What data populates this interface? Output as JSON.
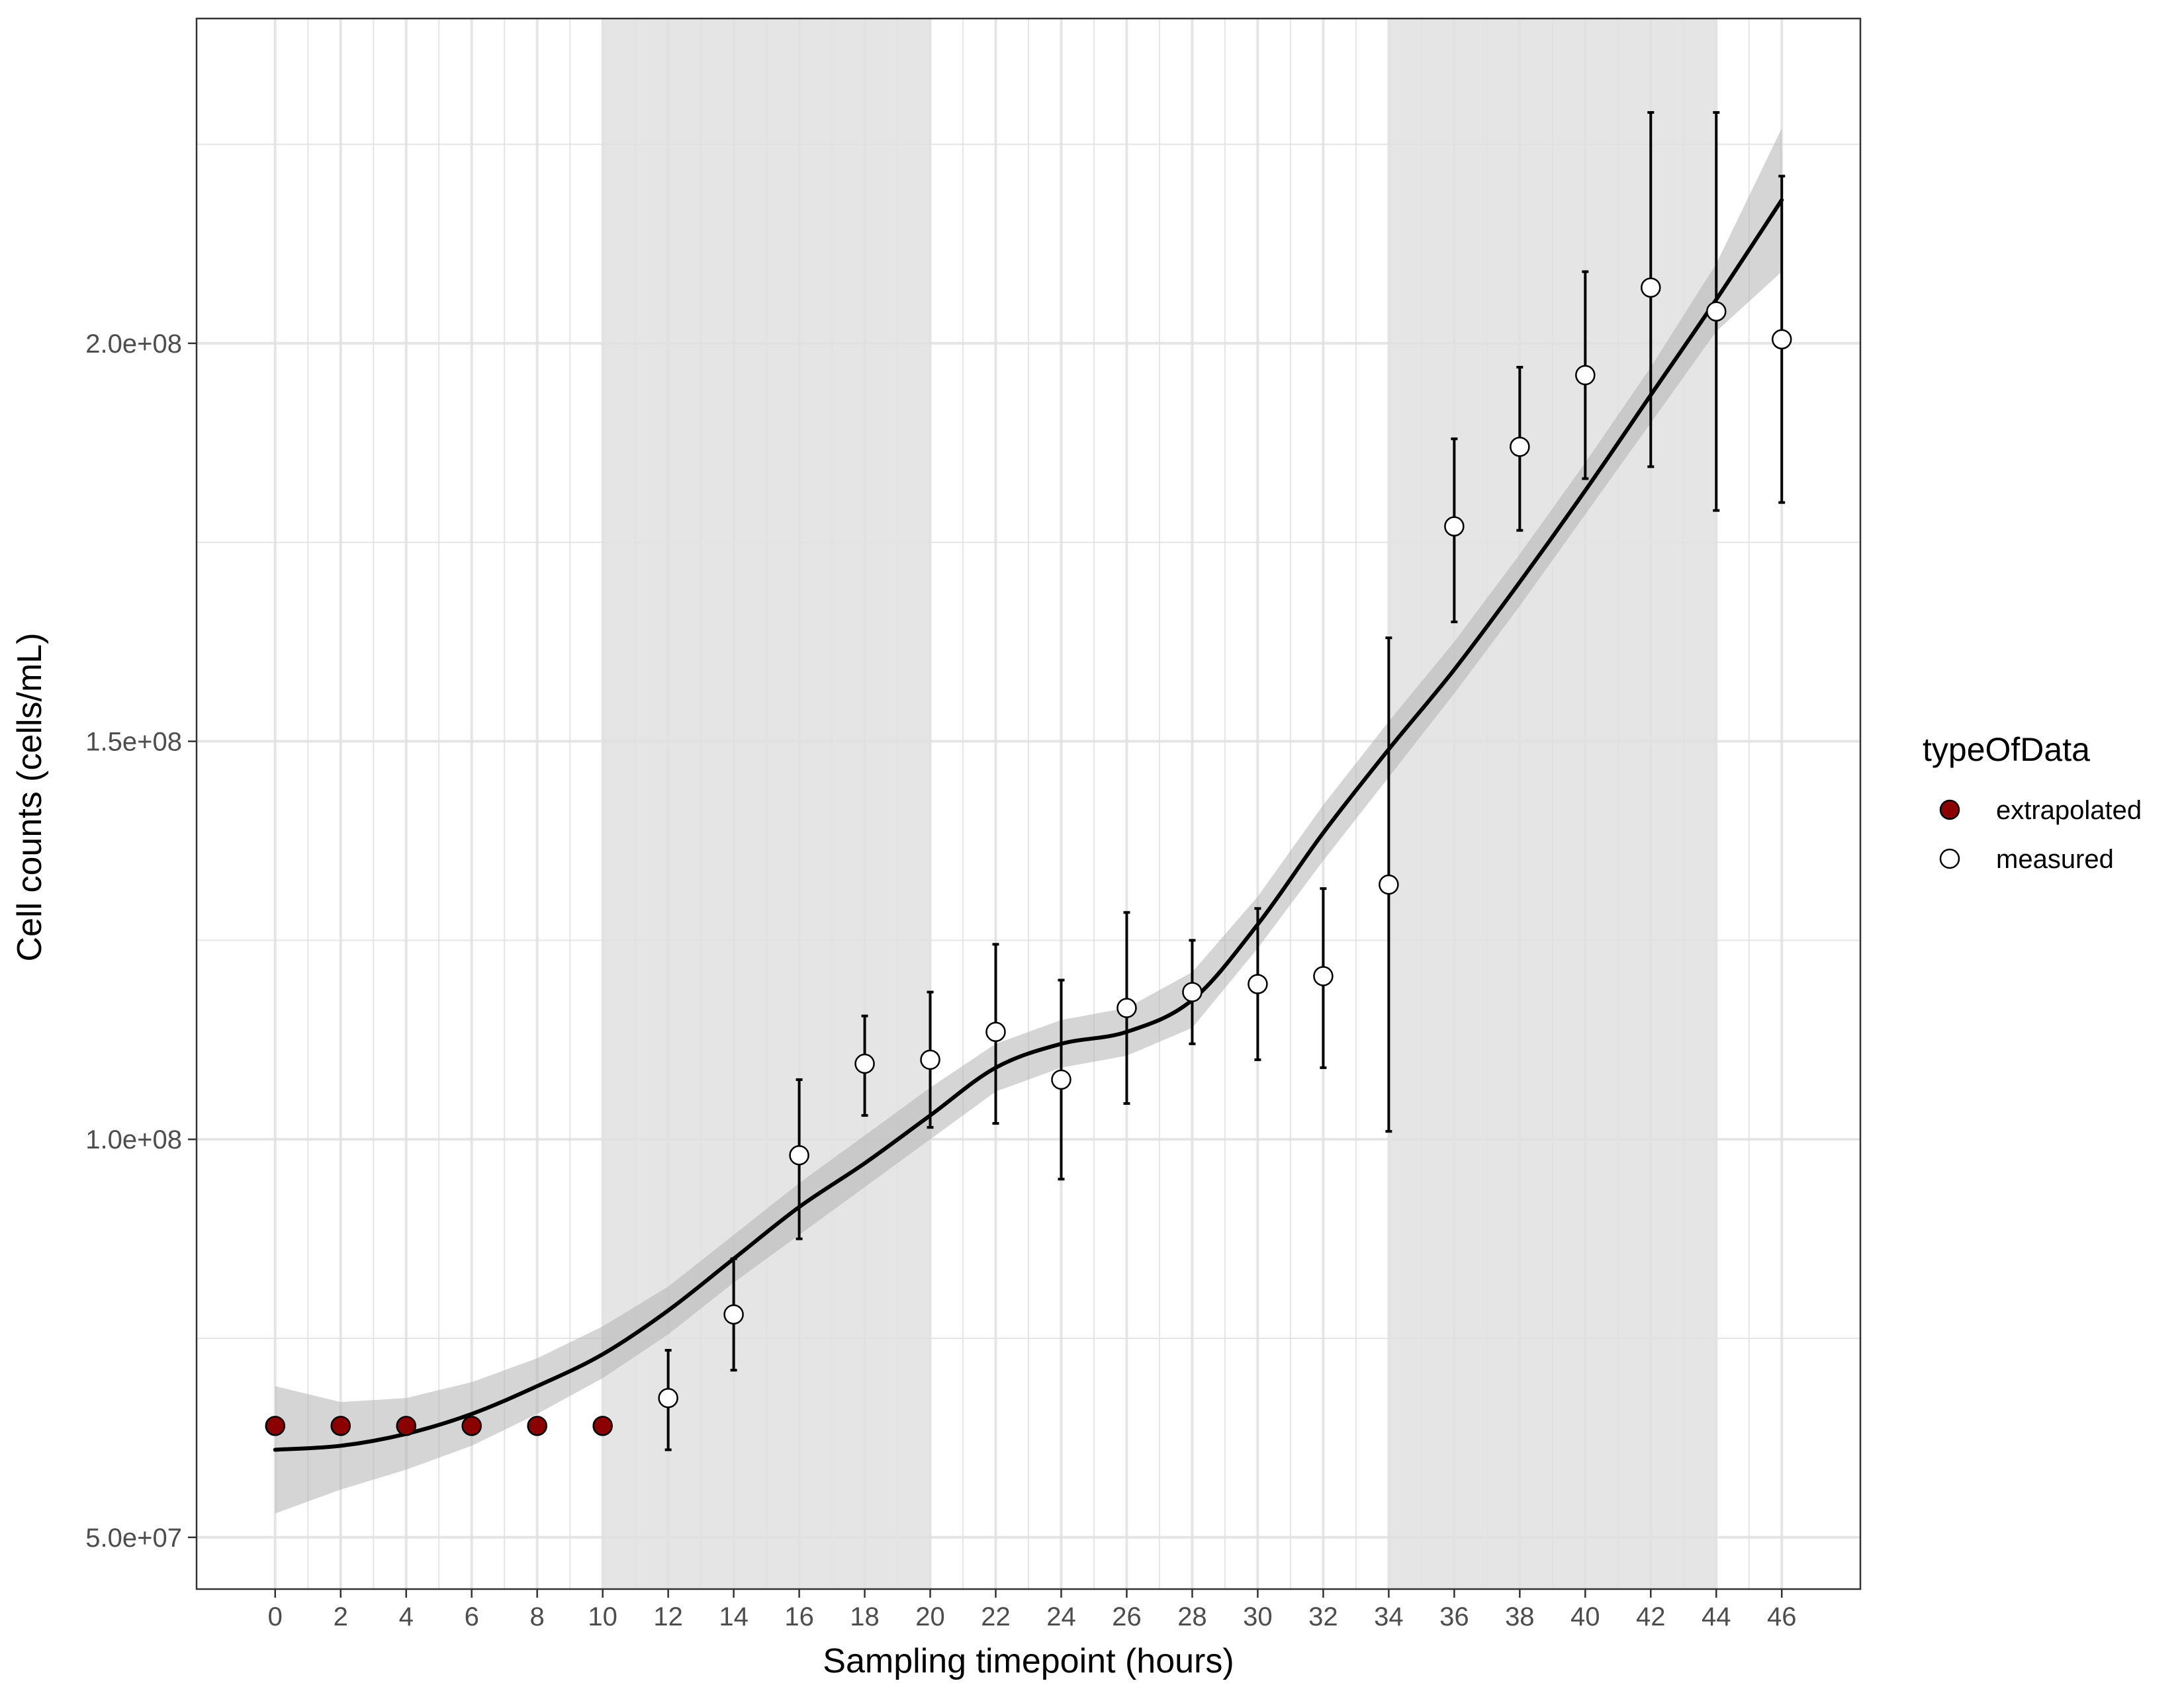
{
  "chart_data": {
    "type": "scatter",
    "title": "",
    "xlabel": "Sampling timepoint (hours)",
    "ylabel": "Cell counts (cells/mL)",
    "xlim": [
      -2.4,
      48.4
    ],
    "ylim": [
      43500000,
      240800000
    ],
    "x_ticks": [
      0,
      2,
      4,
      6,
      8,
      10,
      12,
      14,
      16,
      18,
      20,
      22,
      24,
      26,
      28,
      30,
      32,
      34,
      36,
      38,
      40,
      42,
      44,
      46
    ],
    "x_tick_labels": [
      "0",
      "2",
      "4",
      "6",
      "8",
      "10",
      "12",
      "14",
      "16",
      "18",
      "20",
      "22",
      "24",
      "26",
      "28",
      "30",
      "32",
      "34",
      "36",
      "38",
      "40",
      "42",
      "44",
      "46"
    ],
    "y_ticks": [
      50000000,
      100000000,
      150000000,
      200000000
    ],
    "y_tick_labels": [
      "5.0e+07",
      "1.0e+08",
      "1.5e+08",
      "2.0e+08"
    ],
    "grid": true,
    "shaded_intervals": [
      [
        10,
        20
      ],
      [
        34,
        44
      ]
    ],
    "legend": {
      "title": "typeOfData",
      "placement": "right",
      "entries": [
        {
          "label": "extrapolated",
          "color": "#8B0000"
        },
        {
          "label": "measured",
          "color": "#ffffff"
        }
      ]
    },
    "series": [
      {
        "name": "extrapolated",
        "color": "#8B0000",
        "x": [
          0,
          2,
          4,
          6,
          8,
          10
        ],
        "y": [
          64000000,
          64000000,
          64000000,
          64000000,
          64000000,
          64000000
        ]
      },
      {
        "name": "measured",
        "color": "#ffffff",
        "x": [
          12,
          14,
          16,
          18,
          20,
          22,
          24,
          26,
          28,
          30,
          32,
          34,
          36,
          38,
          40,
          42,
          44,
          46
        ],
        "y": [
          67500000,
          78000000,
          98000000,
          109500000,
          110000000,
          113500000,
          107500000,
          116500000,
          118500000,
          119500000,
          120500000,
          132000000,
          177000000,
          187000000,
          196000000,
          207000000,
          204000000,
          200500000
        ],
        "error_low": [
          61000000,
          71000000,
          87500000,
          103000000,
          101500000,
          102000000,
          95000000,
          104500000,
          112000000,
          110000000,
          109000000,
          101000000,
          165000000,
          176500000,
          183000000,
          184500000,
          179000000,
          180000000
        ],
        "error_high": [
          73500000,
          85000000,
          107500000,
          115500000,
          118500000,
          124500000,
          120000000,
          128500000,
          125000000,
          129000000,
          131500000,
          163000000,
          188000000,
          197000000,
          209000000,
          229000000,
          229000000,
          221000000
        ]
      }
    ],
    "smooth_fit": {
      "color": "#000000",
      "band_color": "#b3b3b3",
      "x": [
        0,
        2,
        4,
        6,
        8,
        10,
        12,
        14,
        16,
        18,
        20,
        22,
        24,
        26,
        28,
        30,
        32,
        34,
        36,
        38,
        40,
        42,
        44,
        46
      ],
      "y": [
        61000000,
        61500000,
        63000000,
        65500000,
        69000000,
        73000000,
        78500000,
        85000000,
        91500000,
        97000000,
        103000000,
        109000000,
        112000000,
        113500000,
        117500000,
        127000000,
        138500000,
        149000000,
        159000000,
        170000000,
        181500000,
        193500000,
        205500000,
        218000000
      ],
      "band_low": [
        53000000,
        56000000,
        58500000,
        61500000,
        65500000,
        70000000,
        75500000,
        82000000,
        88000000,
        94000000,
        100000000,
        106000000,
        109000000,
        110500000,
        114000000,
        124000000,
        135000000,
        145500000,
        156000000,
        167000000,
        178500000,
        190000000,
        201500000,
        209000000
      ],
      "band_high": [
        69000000,
        67000000,
        67500000,
        69500000,
        72500000,
        76500000,
        81500000,
        88000000,
        94500000,
        100500000,
        106500000,
        112000000,
        115000000,
        116500000,
        121000000,
        130500000,
        142000000,
        152500000,
        162500000,
        173500000,
        185000000,
        197000000,
        210000000,
        227000000
      ]
    }
  }
}
